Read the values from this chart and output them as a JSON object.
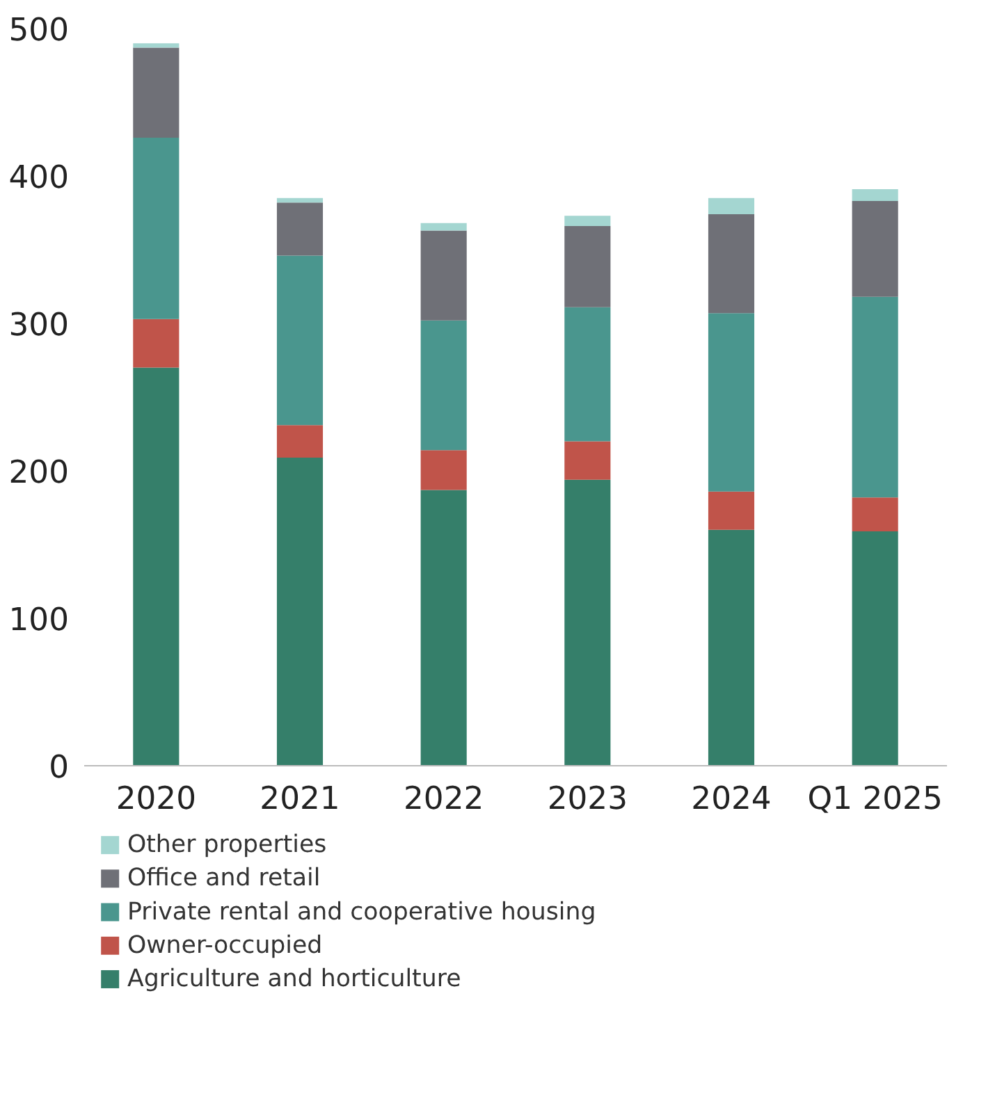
{
  "chart_data": {
    "type": "bar",
    "stacked": true,
    "categories": [
      "2020",
      "2021",
      "2022",
      "2023",
      "2024",
      "Q1 2025"
    ],
    "series": [
      {
        "name": "Agriculture and horticulture",
        "color": "#357f6a",
        "values": [
          270,
          209,
          187,
          194,
          160,
          159
        ]
      },
      {
        "name": "Owner-occupied",
        "color": "#c0544a",
        "values": [
          33,
          22,
          27,
          26,
          26,
          23
        ]
      },
      {
        "name": "Private rental and cooperative housing",
        "color": "#4a968e",
        "values": [
          123,
          115,
          88,
          91,
          121,
          136
        ]
      },
      {
        "name": "Office and retail",
        "color": "#6f7077",
        "values": [
          61,
          36,
          61,
          55,
          67,
          65
        ]
      },
      {
        "name": "Other properties",
        "color": "#a4d6d1",
        "values": [
          3,
          3,
          5,
          7,
          11,
          8
        ]
      }
    ],
    "ylim": [
      0,
      500
    ],
    "yticks": [
      0,
      100,
      200,
      300,
      400,
      500
    ],
    "grid": false,
    "legend": "bottom"
  }
}
